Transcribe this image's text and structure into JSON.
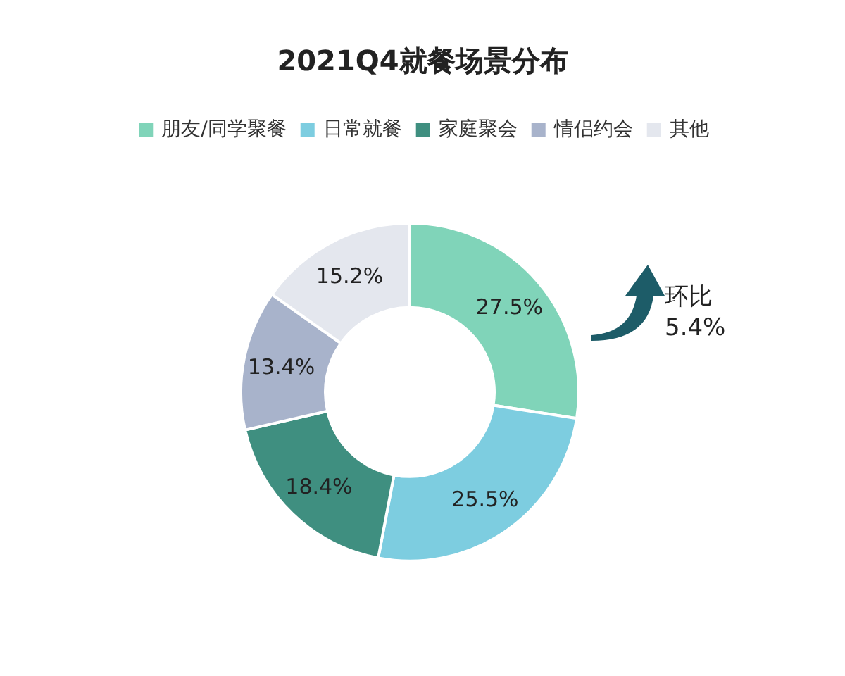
{
  "chart_data": {
    "type": "donut",
    "title": "2021Q4就餐场景分布",
    "categories": [
      "朋友/同学聚餐",
      "日常就餐",
      "家庭聚会",
      "情侣约会",
      "其他"
    ],
    "values": [
      27.5,
      25.5,
      18.4,
      13.4,
      15.2
    ],
    "colors": [
      "#80d4b9",
      "#7dcde0",
      "#3f8f80",
      "#a8b3cb",
      "#e4e7ee"
    ],
    "value_labels": [
      "27.5%",
      "25.5%",
      "18.4%",
      "13.4%",
      "15.2%"
    ],
    "legend": "top",
    "annotations": [
      "环比",
      "5.4%"
    ]
  }
}
